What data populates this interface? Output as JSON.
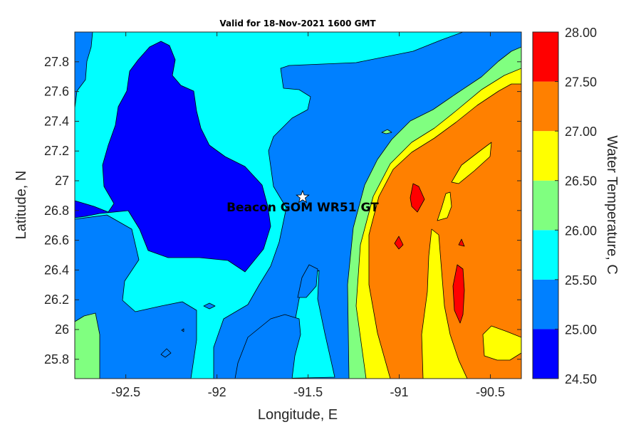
{
  "chart_data": {
    "type": "contourf",
    "title": "Valid for 18-Nov-2021 1600 GMT",
    "xlabel": "Longitude, E",
    "ylabel": "Latitude, N",
    "colorbar_label": "Water Temperature, C",
    "xlim": [
      -92.78,
      -90.33
    ],
    "ylim": [
      25.67,
      28.0
    ],
    "x_ticks": [
      -92.5,
      -92,
      -91.5,
      -91,
      -90.5
    ],
    "x_tick_labels": [
      "-92.5",
      "-92",
      "-91.5",
      "-91",
      "-90.5"
    ],
    "y_ticks": [
      25.8,
      26,
      26.2,
      26.4,
      26.6,
      26.8,
      27,
      27.2,
      27.4,
      27.6,
      27.8
    ],
    "y_tick_labels": [
      "25.8",
      "26",
      "26.2",
      "26.4",
      "26.6",
      "26.8",
      "27",
      "27.2",
      "27.4",
      "27.6",
      "27.8"
    ],
    "levels": [
      24.5,
      25.0,
      25.5,
      26.0,
      26.5,
      27.0,
      27.5,
      28.0
    ],
    "level_labels": [
      "24.50",
      "25.00",
      "25.50",
      "26.00",
      "26.50",
      "27.00",
      "27.50",
      "28.00"
    ],
    "level_colors": [
      "#0000ff",
      "#0080ff",
      "#00ffff",
      "#80ff80",
      "#ffff00",
      "#ff8000",
      "#ff0000"
    ],
    "station": {
      "name": "Beacon GOM WR51 GT",
      "lon": -91.53,
      "lat": 26.89
    }
  }
}
